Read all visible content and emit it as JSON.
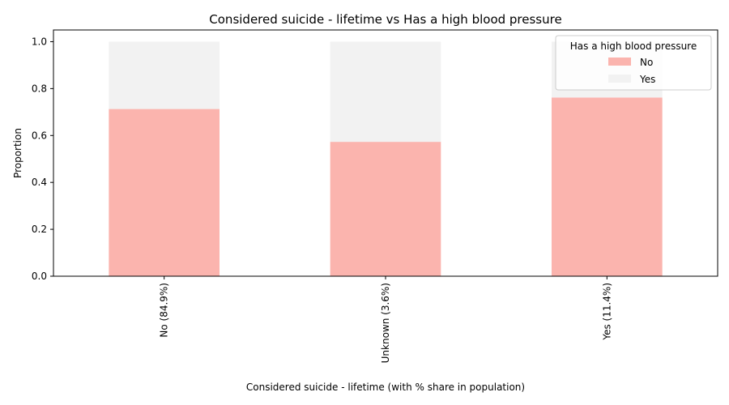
{
  "chart_data": {
    "type": "bar",
    "stacked": true,
    "title": "Considered suicide - lifetime vs Has a high blood pressure",
    "xlabel": "Considered suicide - lifetime (with % share in population)",
    "ylabel": "Proportion",
    "categories": [
      "No (84.9%)",
      "Unknown (3.6%)",
      "Yes (11.4%)"
    ],
    "series": [
      {
        "name": "No",
        "values": [
          0.713,
          0.573,
          0.762
        ],
        "color": "#fbb4ae"
      },
      {
        "name": "Yes",
        "values": [
          0.287,
          0.427,
          0.238
        ],
        "color": "#f2f2f2"
      }
    ],
    "ylim": [
      0,
      1.05
    ],
    "yticks": [
      "0.0",
      "0.2",
      "0.4",
      "0.6",
      "0.8",
      "1.0"
    ],
    "grid": false,
    "legend": {
      "title": "Has a high blood pressure",
      "placement": "top-right"
    }
  }
}
